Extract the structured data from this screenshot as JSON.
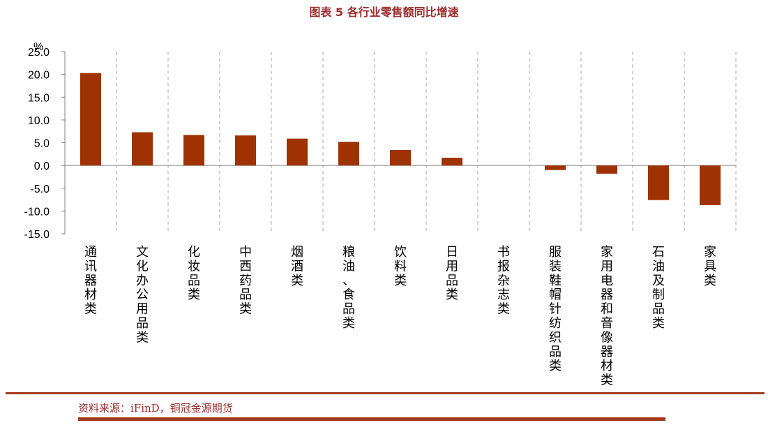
{
  "title": "图表 5  各行业零售额同比增速",
  "source": "资料来源：iFinD，铜冠金源期货",
  "chart_data": {
    "type": "bar",
    "title": "图表 5  各行业零售额同比增速",
    "ylabel": "%",
    "ylim": [
      -15,
      25
    ],
    "yticks": [
      25,
      20,
      15,
      10,
      5,
      0,
      -5,
      -10,
      -15
    ],
    "ytick_labels": [
      "25.0",
      "20.0",
      "15.0",
      "10.0",
      "5.0",
      "0.0",
      "-5.0",
      "-10.0",
      "-15.0"
    ],
    "categories": [
      "通讯器材类",
      "文化办公用品类",
      "化妆品类",
      "中西药品类",
      "烟酒类",
      "粮油、食品类",
      "饮料类",
      "日用品类",
      "书报杂志类",
      "服装鞋帽针纺织品类",
      "家用电器和音像器材类",
      "石油及制品类",
      "家具类"
    ],
    "values": [
      20.3,
      7.3,
      6.7,
      6.6,
      5.9,
      5.2,
      3.4,
      1.7,
      0.0,
      -1.0,
      -1.8,
      -7.6,
      -8.7
    ],
    "bar_color": "#9E3203",
    "grid": "vertical dashed",
    "legend": "none"
  }
}
